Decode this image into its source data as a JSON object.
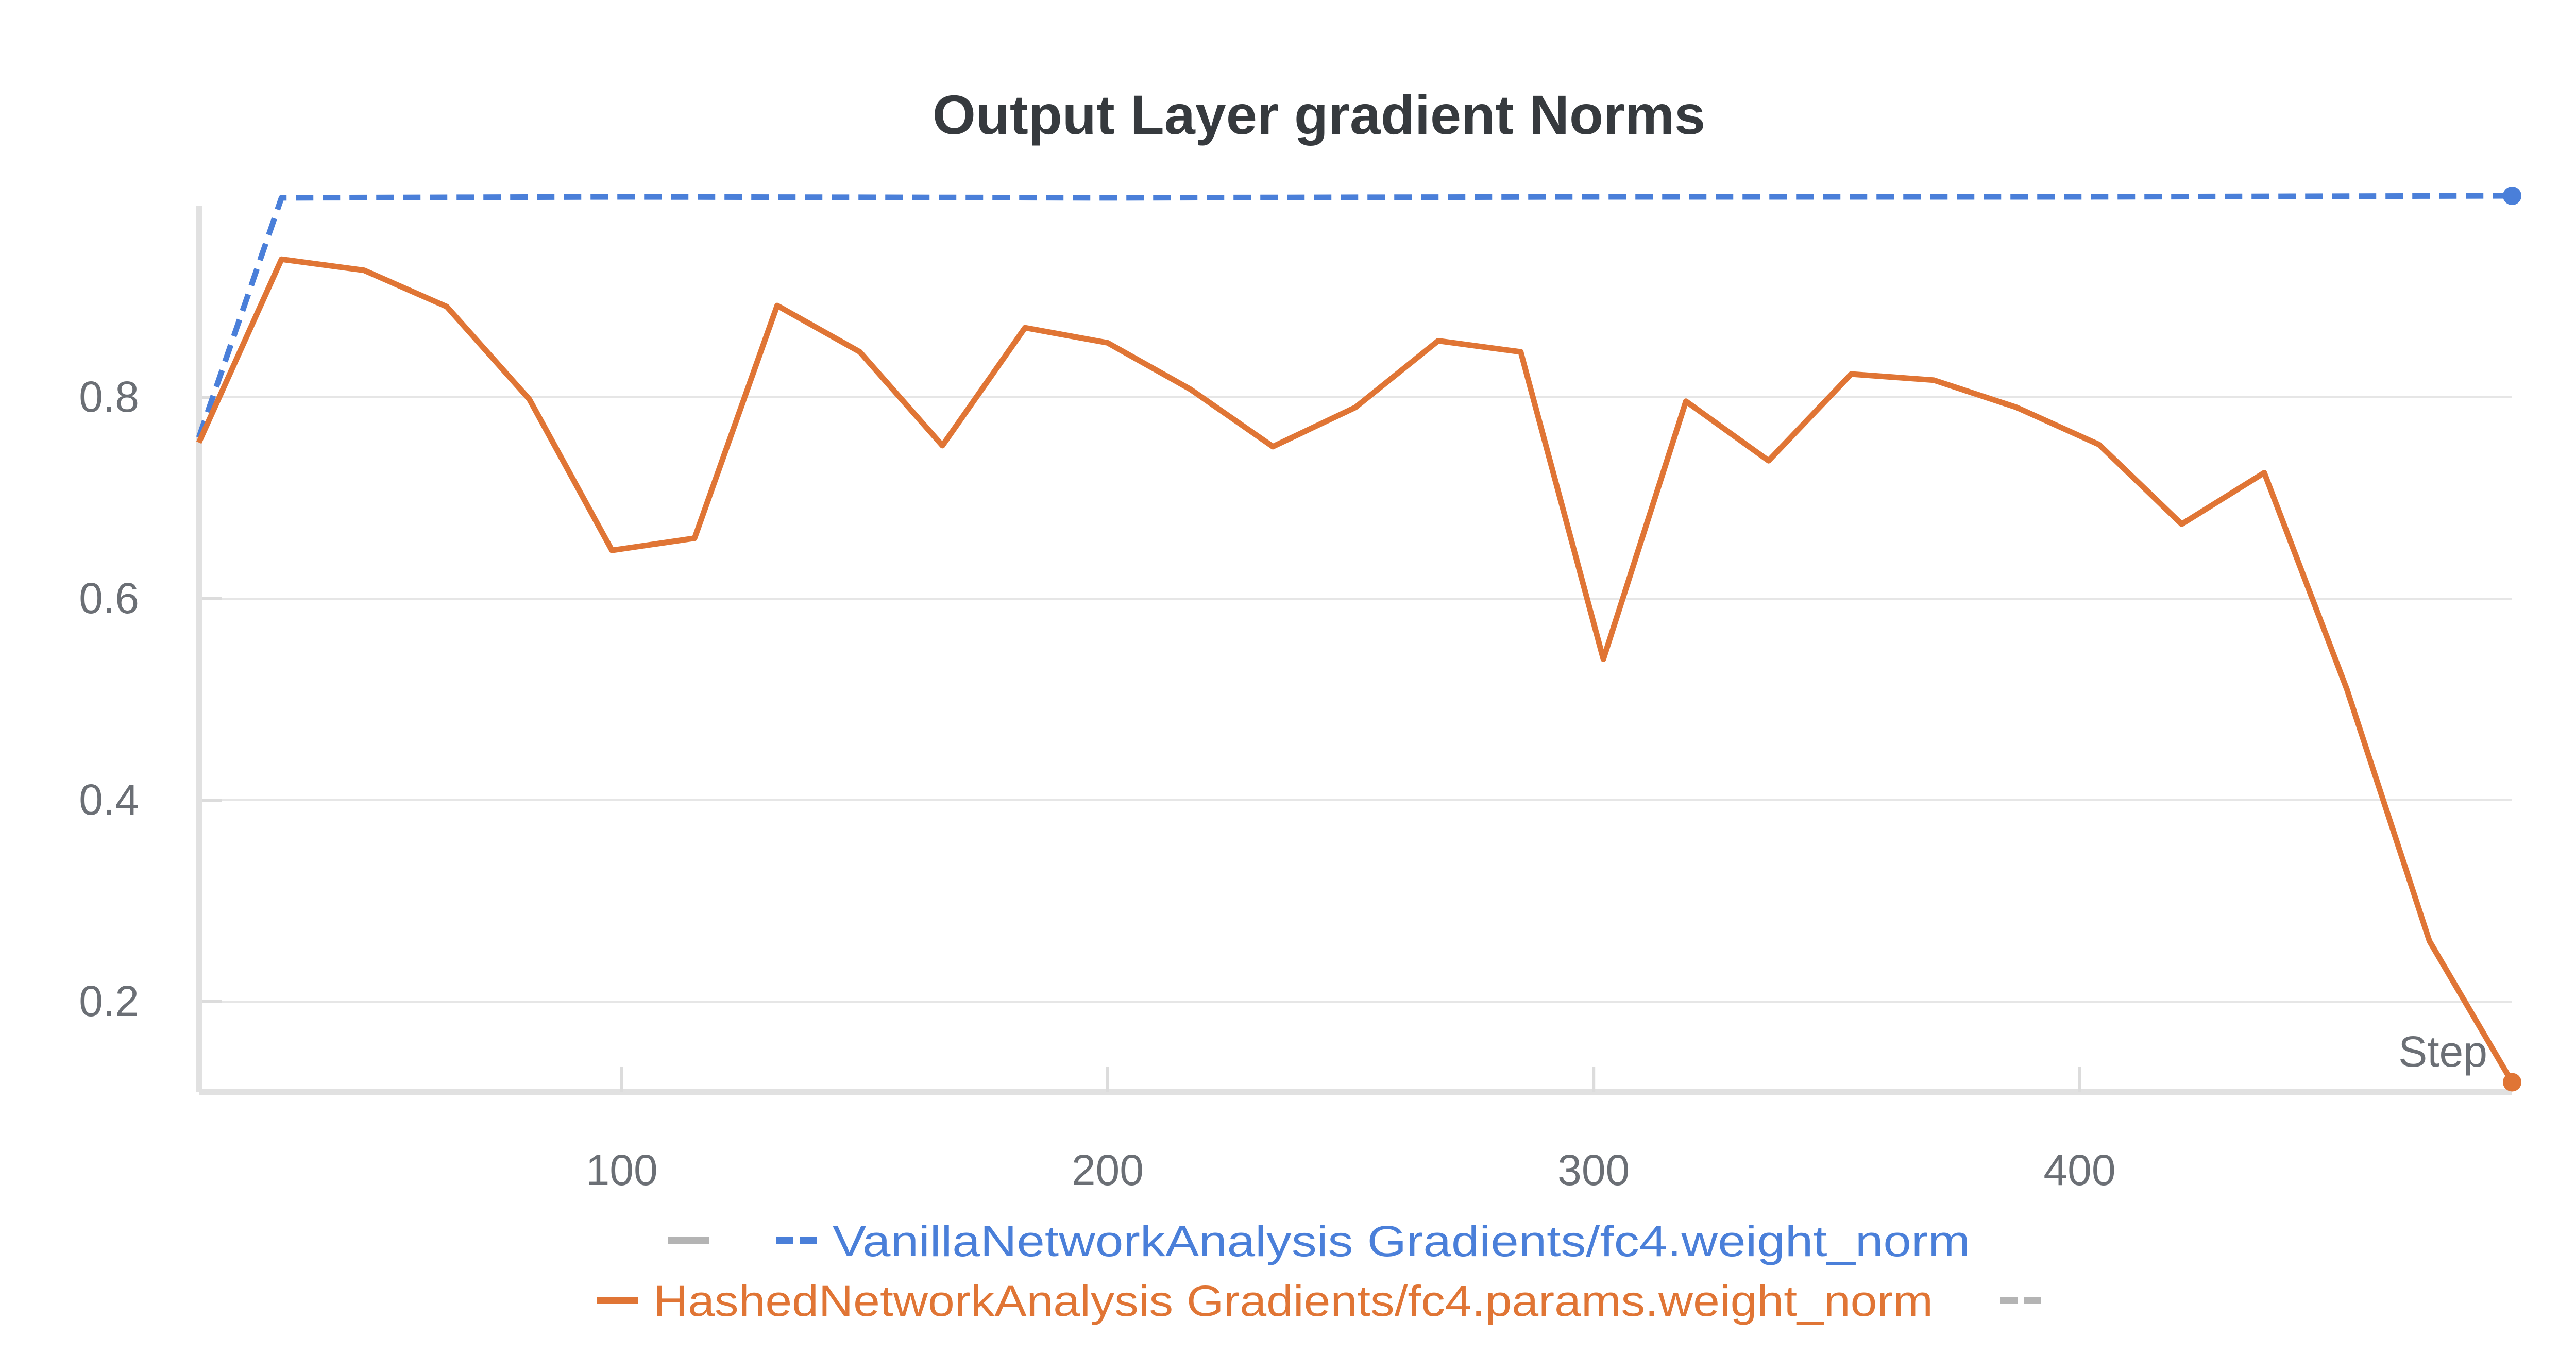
{
  "chart_data": {
    "type": "line",
    "title": "Output Layer gradient Norms",
    "xlabel": "Step",
    "ylabel": "",
    "xlim": [
      13,
      489
    ],
    "ylim": [
      0.11,
      1.0
    ],
    "x_ticks": [
      100,
      200,
      300,
      400
    ],
    "y_ticks": [
      0.2,
      0.4,
      0.6,
      0.8
    ],
    "grid": "horizontal",
    "legend_position": "bottom",
    "series": [
      {
        "name": "VanillaNetworkAnalysis Gradients/fc4.weight_norm",
        "color": "#4a7fd9",
        "line_style": "dashed",
        "x": [
          13,
          30,
          100,
          200,
          300,
          400,
          489
        ],
        "y": [
          0.76,
          0.998,
          0.999,
          0.998,
          0.999,
          0.999,
          1.0
        ]
      },
      {
        "name": "HashedNetworkAnalysis Gradients/fc4.params.weight_norm",
        "color": "#e07535",
        "line_style": "solid",
        "x": [
          13,
          30,
          47,
          64,
          81,
          98,
          115,
          132,
          149,
          166,
          183,
          200,
          217,
          234,
          251,
          268,
          285,
          302,
          319,
          336,
          353,
          370,
          387,
          404,
          421,
          438,
          455,
          472,
          489
        ],
        "y": [
          0.755,
          0.937,
          0.926,
          0.89,
          0.798,
          0.648,
          0.66,
          0.891,
          0.845,
          0.752,
          0.869,
          0.854,
          0.808,
          0.751,
          0.79,
          0.856,
          0.845,
          0.54,
          0.796,
          0.737,
          0.823,
          0.817,
          0.79,
          0.753,
          0.674,
          0.725,
          0.51,
          0.26,
          0.12
        ]
      }
    ],
    "legend_rows": [
      [
        {
          "kind": "marker",
          "color": "#b4b4b4",
          "style": "solid"
        },
        {
          "kind": "series",
          "series_index": 0
        }
      ],
      [
        {
          "kind": "series",
          "series_index": 1
        },
        {
          "kind": "marker",
          "color": "#b4b4b4",
          "style": "dashed"
        }
      ]
    ]
  }
}
